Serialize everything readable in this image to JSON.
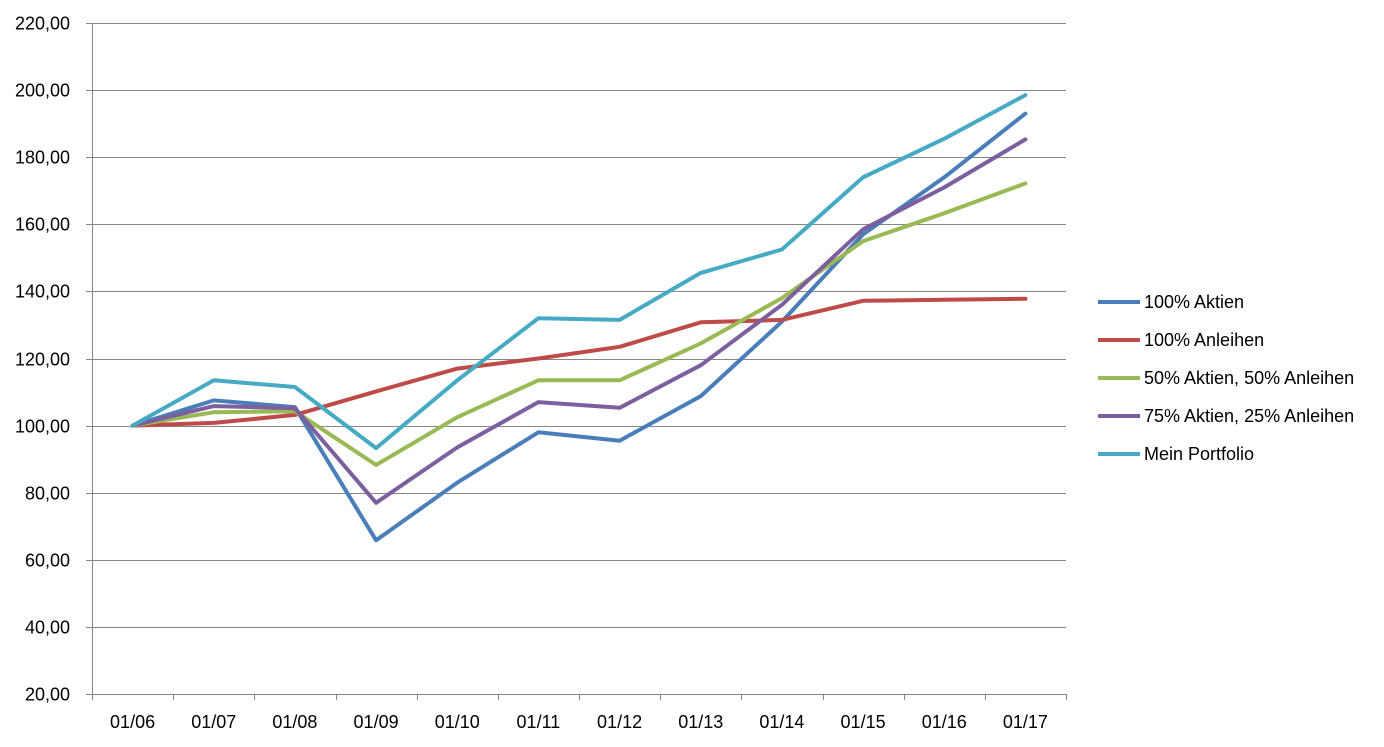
{
  "chart_data": {
    "type": "line",
    "title": "",
    "xlabel": "",
    "ylabel": "",
    "ylim": [
      20,
      220
    ],
    "yticks": [
      "20,00",
      "40,00",
      "60,00",
      "80,00",
      "100,00",
      "120,00",
      "140,00",
      "160,00",
      "180,00",
      "200,00",
      "220,00"
    ],
    "ytick_values": [
      20,
      40,
      60,
      80,
      100,
      120,
      140,
      160,
      180,
      200,
      220
    ],
    "categories": [
      "01/06",
      "01/07",
      "01/08",
      "01/09",
      "01/10",
      "01/11",
      "01/12",
      "01/13",
      "01/14",
      "01/15",
      "01/16",
      "01/17"
    ],
    "grid": "horizontal",
    "legend_position": "right",
    "series": [
      {
        "name": "100% Aktien",
        "color": "#4a7ebb",
        "values": [
          100,
          107.5,
          105.5,
          65.8,
          83,
          98,
          95.5,
          108.8,
          131,
          157,
          174,
          193
        ]
      },
      {
        "name": "100% Anleihen",
        "color": "#be4b48",
        "values": [
          100,
          100.8,
          103.2,
          110.2,
          117,
          120,
          123.5,
          130.8,
          131.5,
          137.2,
          137.5,
          137.8
        ]
      },
      {
        "name": "50% Aktien, 50% Anleihen",
        "color": "#98b954",
        "values": [
          100,
          104,
          104.3,
          88.3,
          102.5,
          113.5,
          113.5,
          124.5,
          138,
          155,
          163.3,
          172.2
        ]
      },
      {
        "name": "75% Aktien, 25% Anleihen",
        "color": "#7d5fa0",
        "values": [
          100,
          105.8,
          105.2,
          77,
          93.5,
          107,
          105.3,
          118,
          136,
          158.5,
          171,
          185.3
        ]
      },
      {
        "name": "Mein Portfolio",
        "color": "#46aac5",
        "values": [
          100,
          113.5,
          111.5,
          93.3,
          113.5,
          132,
          131.5,
          145.5,
          152.5,
          174,
          185.5,
          198.5
        ]
      }
    ]
  }
}
